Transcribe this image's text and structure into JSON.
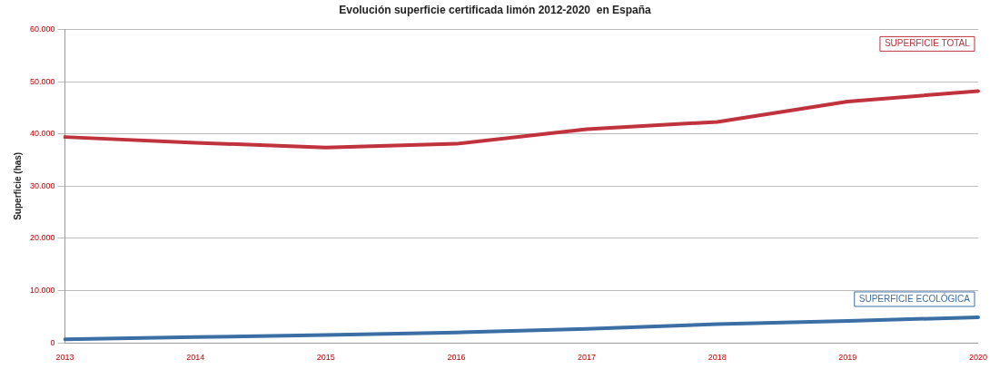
{
  "chart_data": {
    "type": "line",
    "title": "Evolución superficie certificada limón 2012-2020  en España",
    "ylabel": "Superficie (has)",
    "categories": [
      "2013",
      "2014",
      "2015",
      "2016",
      "2017",
      "2018",
      "2019",
      "2020"
    ],
    "series": [
      {
        "name": "SUPERFICIE TOTAL",
        "color": "#c0323c",
        "values": [
          39400,
          38300,
          37400,
          38100,
          40900,
          42300,
          46200,
          48200
        ]
      },
      {
        "name": "SUPERFICIE ECOLÓGICA",
        "color": "#3a6ea5",
        "values": [
          700,
          1100,
          1500,
          2000,
          2700,
          3600,
          4200,
          4900
        ]
      }
    ],
    "ylim": [
      0,
      60000
    ],
    "yticks": [
      0,
      {
        "value": 10000,
        "label": "10.000"
      },
      {
        "value": 20000,
        "label": "20.000"
      },
      {
        "value": 30000,
        "label": "30.000"
      },
      {
        "value": 40000,
        "label": "40.000"
      },
      {
        "value": 50000,
        "label": "50.000"
      },
      {
        "value": 60000,
        "label": "60.000"
      }
    ],
    "grid": "y",
    "marker": "none",
    "line_style": "solid"
  }
}
